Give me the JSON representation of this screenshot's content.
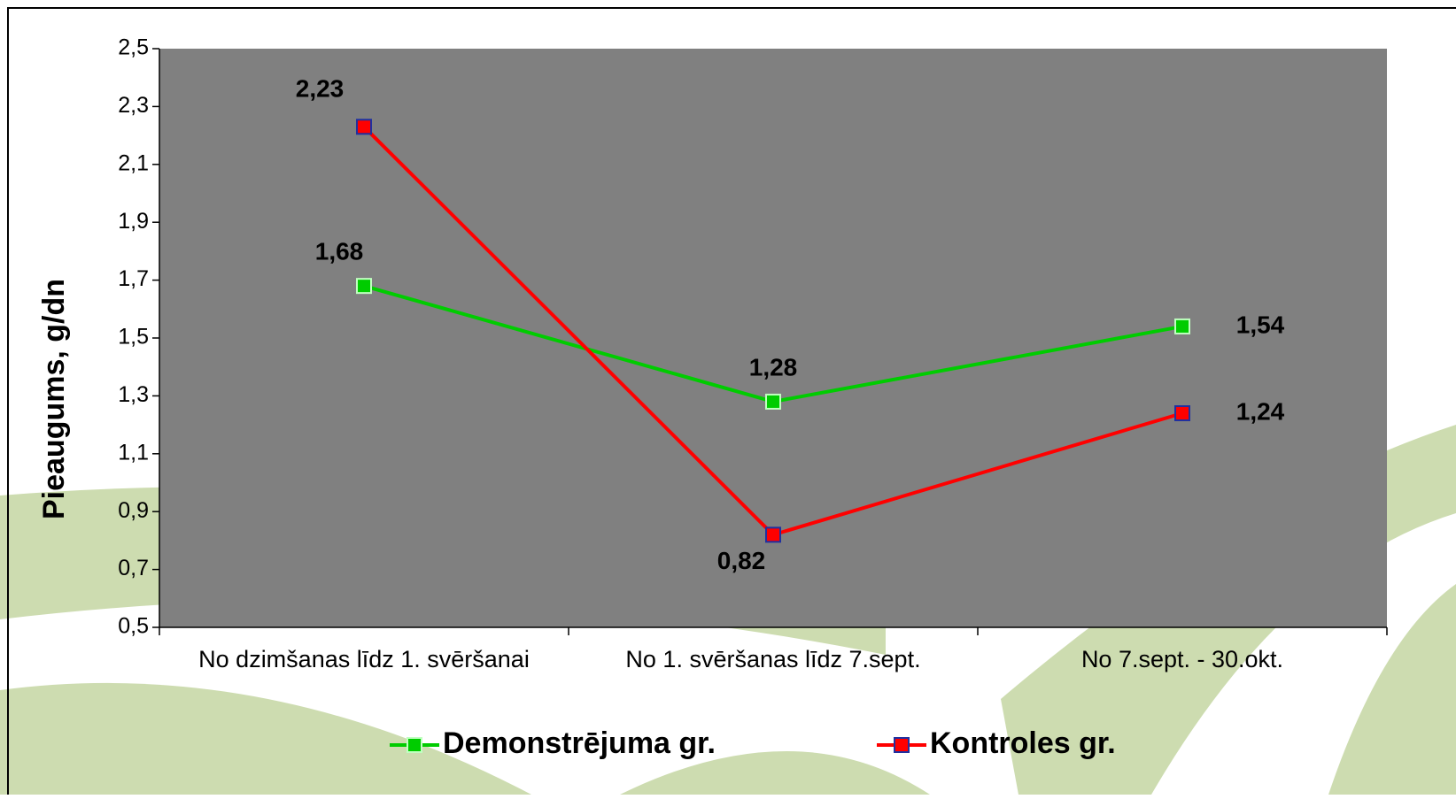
{
  "chart_data": {
    "type": "line",
    "y_label": "Pieaugums,  g/dn",
    "categories": [
      "No dzimšanas līdz 1. svēršanai",
      "No 1. svēršanas līdz 7.sept.",
      "No 7.sept. - 30.okt."
    ],
    "series": [
      {
        "name": "Demonstrējuma gr.",
        "color": "#00cc00",
        "values": [
          1.68,
          1.28,
          1.54
        ],
        "value_labels": [
          "1,68",
          "1,28",
          "1,54"
        ]
      },
      {
        "name": "Kontroles gr.",
        "color": "#ff0000",
        "values": [
          2.23,
          0.82,
          1.24
        ],
        "value_labels": [
          "2,23",
          "0,82",
          "1,24"
        ]
      }
    ],
    "ylim": [
      0.5,
      2.5
    ],
    "yticks": [
      {
        "value": 0.5,
        "label": "0,5"
      },
      {
        "value": 0.7,
        "label": "0,7"
      },
      {
        "value": 0.9,
        "label": "0,9"
      },
      {
        "value": 1.1,
        "label": "1,1"
      },
      {
        "value": 1.3,
        "label": "1,3"
      },
      {
        "value": 1.5,
        "label": "1,5"
      },
      {
        "value": 1.7,
        "label": "1,7"
      },
      {
        "value": 1.9,
        "label": "1,9"
      },
      {
        "value": 2.1,
        "label": "2,1"
      },
      {
        "value": 2.3,
        "label": "2,3"
      },
      {
        "value": 2.5,
        "label": "2,5"
      }
    ],
    "plot_background": "#808080"
  }
}
